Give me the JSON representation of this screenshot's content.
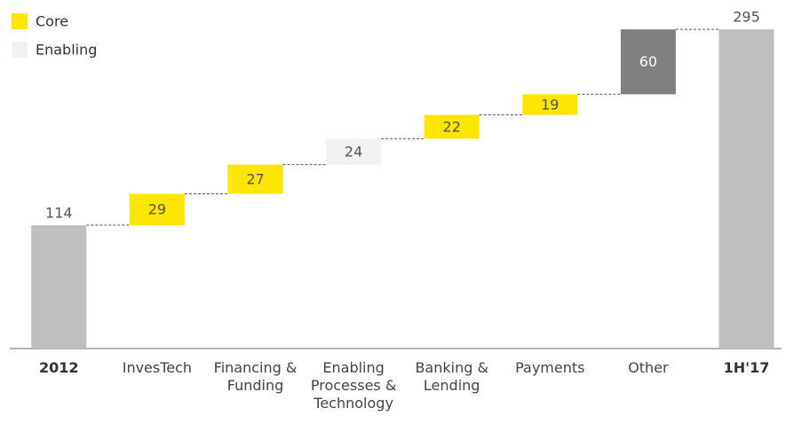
{
  "chart_data": {
    "type": "waterfall",
    "categories": [
      "2012",
      "InvesTech",
      "Financing & Funding",
      "Enabling Processes & Technology",
      "Banking & Lending",
      "Payments",
      "Other",
      "1H'17"
    ],
    "values": [
      114,
      29,
      27,
      24,
      22,
      19,
      60,
      295
    ],
    "measure": [
      "absolute",
      "relative",
      "relative",
      "relative",
      "relative",
      "relative",
      "relative",
      "total"
    ],
    "colors": [
      "#bfbfbf",
      "#ffe600",
      "#ffe600",
      "#f2f2f2",
      "#ffe600",
      "#ffe600",
      "#808080",
      "#bfbfbf"
    ],
    "legend": [
      {
        "name": "Core",
        "color": "#ffe600"
      },
      {
        "name": "Enabling",
        "color": "#f2f2f2"
      }
    ],
    "ylim": [
      0,
      300
    ]
  }
}
